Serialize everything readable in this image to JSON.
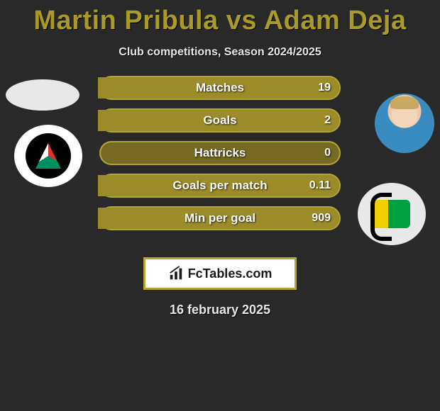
{
  "title": "Martin Pribula vs Adam Deja",
  "subtitle": "Club competitions, Season 2024/2025",
  "date": "16 february 2025",
  "brand": "FcTables.com",
  "colors": {
    "background": "#292929",
    "accent": "#aa9b27",
    "bar_border": "#b7a533",
    "bar_bg": "#746a22",
    "bar_fill": "#9b8c29",
    "text_light": "#e8e8e8",
    "white": "#ffffff"
  },
  "stats": [
    {
      "label": "Matches",
      "right_value": "19",
      "right_fill_pct": 100
    },
    {
      "label": "Goals",
      "right_value": "2",
      "right_fill_pct": 100
    },
    {
      "label": "Hattricks",
      "right_value": "0",
      "right_fill_pct": 0
    },
    {
      "label": "Goals per match",
      "right_value": "0.11",
      "right_fill_pct": 100
    },
    {
      "label": "Min per goal",
      "right_value": "909",
      "right_fill_pct": 100
    }
  ],
  "players": {
    "left": {
      "name": "Martin Pribula",
      "crest": "zaglebie-sosnowiec"
    },
    "right": {
      "name": "Adam Deja",
      "crest": "gks-tychy"
    }
  }
}
